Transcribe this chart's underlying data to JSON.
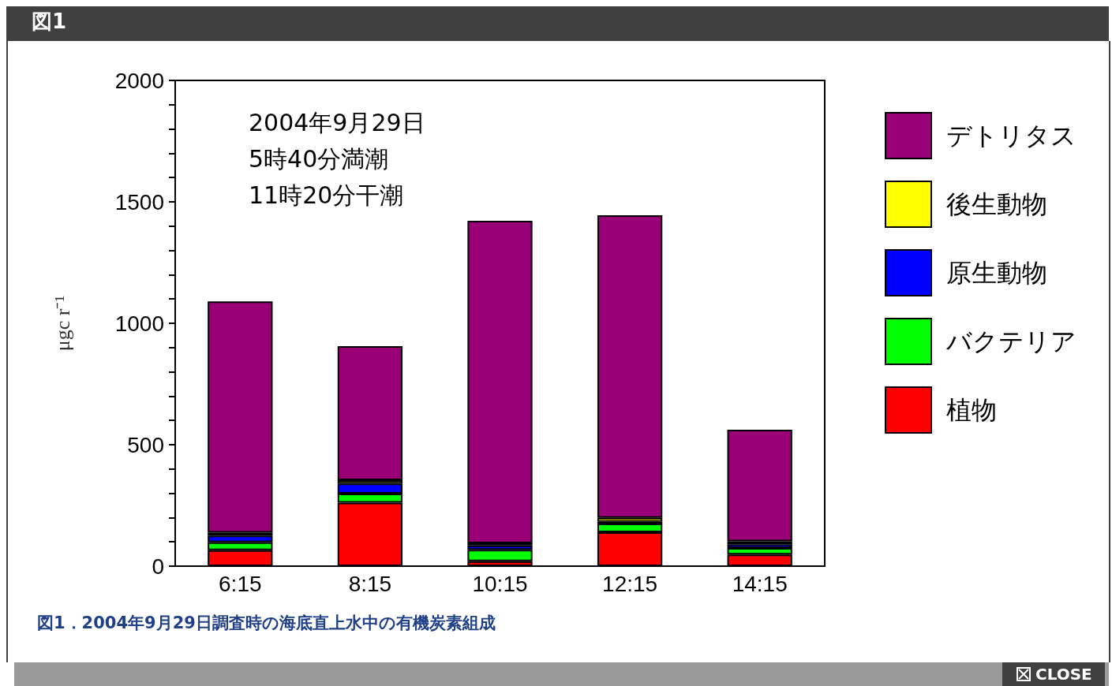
{
  "chart_data": {
    "type": "bar",
    "title": "図1",
    "ylabel": "μgc r⁻¹",
    "categories": [
      "6:15",
      "8:15",
      "10:15",
      "12:15",
      "14:15"
    ],
    "stacked": true,
    "series": [
      {
        "name": "植物",
        "color": "#ff0000",
        "values": [
          66,
          261,
          20,
          140,
          48
        ]
      },
      {
        "name": "バクテリア",
        "color": "#00ff00",
        "values": [
          32,
          38,
          47,
          35,
          27
        ]
      },
      {
        "name": "原生動物",
        "color": "#0000ff",
        "values": [
          28,
          41,
          18,
          8,
          15
        ]
      },
      {
        "name": "後生動物",
        "color": "#ffff00",
        "values": [
          12,
          14,
          9,
          16,
          12
        ]
      },
      {
        "name": "デトリタス",
        "color": "#990077",
        "values": [
          952,
          552,
          1328,
          1246,
          460
        ]
      }
    ],
    "ylim": [
      0,
      2000
    ],
    "yticks": [
      0,
      {
        "value": 100,
        "label": null
      },
      {
        "value": 200,
        "label": null
      },
      {
        "value": 300,
        "label": null
      },
      {
        "value": 400,
        "label": null
      },
      500,
      {
        "value": 600,
        "label": null
      },
      {
        "value": 700,
        "label": null
      },
      {
        "value": 800,
        "label": null
      },
      {
        "value": 900,
        "label": null
      },
      1000,
      {
        "value": 1100,
        "label": null
      },
      {
        "value": 1200,
        "label": null
      },
      {
        "value": 1300,
        "label": null
      },
      {
        "value": 1400,
        "label": null
      },
      1500,
      {
        "value": 1600,
        "label": null
      },
      {
        "value": 1700,
        "label": null
      },
      {
        "value": 1800,
        "label": null
      },
      {
        "value": 1900,
        "label": null
      },
      2000
    ],
    "grid": false,
    "legend": "right",
    "annotations": [
      "2004年9月29日\n5時40分満潮\n11時20分干潮",
      "図1．2004年9月29日調査時の海底直上水中の有機炭素組成",
      "CLOSE"
    ]
  }
}
